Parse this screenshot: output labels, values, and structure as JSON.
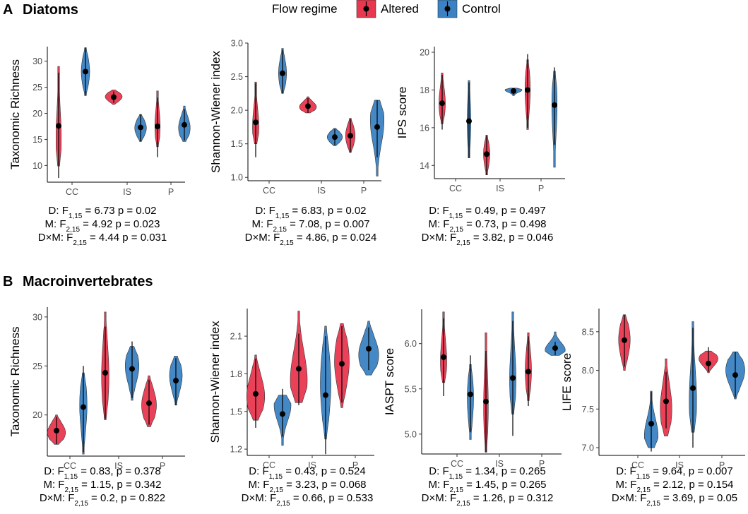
{
  "colors": {
    "altered": "#e8384f",
    "control": "#3a82c3"
  },
  "legend": {
    "title": "Flow regime",
    "items": [
      {
        "label": "Altered",
        "color_key": "altered"
      },
      {
        "label": "Control",
        "color_key": "control"
      }
    ]
  },
  "sections": [
    {
      "letter": "A",
      "title": "Diatoms"
    },
    {
      "letter": "B",
      "title": "Macroinvertebrates"
    }
  ],
  "chart_data": [
    {
      "id": "diatoms-richness",
      "type": "violin",
      "section": "A",
      "ylabel": "Taxonomic Richness",
      "ylim": [
        6.8,
        32.8
      ],
      "yticks": [
        10,
        15,
        20,
        25,
        30
      ],
      "categories": [
        "CC",
        "IS",
        "P"
      ],
      "series": [
        {
          "name": "Altered",
          "groups": [
            {
              "category": "CC",
              "mean": 17.6,
              "lo": 7.6,
              "hi": 27.8,
              "vmin": 9.9,
              "vmax": 29.0,
              "peak": 15,
              "width": 0.25
            },
            {
              "category": "IS",
              "mean": 23.1,
              "lo": 22.0,
              "hi": 24.2,
              "vmin": 21.7,
              "vmax": 24.5,
              "peak": 23.2,
              "width": 0.8
            },
            {
              "category": "P",
              "mean": 17.5,
              "lo": 11.6,
              "hi": 23.0,
              "vmin": 13.6,
              "vmax": 24.3,
              "peak": 17.5,
              "width": 0.25
            }
          ]
        },
        {
          "name": "Control",
          "groups": [
            {
              "category": "CC",
              "mean": 28.0,
              "lo": 23.5,
              "hi": 32.6,
              "vmin": 23.4,
              "vmax": 32.6,
              "peak": 28.0,
              "width": 0.4
            },
            {
              "category": "IS",
              "mean": 17.3,
              "lo": 14.6,
              "hi": 19.8,
              "vmin": 14.6,
              "vmax": 19.8,
              "peak": 17.2,
              "width": 0.55
            },
            {
              "category": "P",
              "mean": 17.8,
              "lo": 14.8,
              "hi": 20.8,
              "vmin": 14.6,
              "vmax": 21.4,
              "peak": 17.2,
              "width": 0.55
            }
          ]
        }
      ],
      "stats": {
        "d_pre": "D: F",
        "d_sub": "1,15",
        "d_post": " = 6.73 p = 0.02",
        "m_pre": "M: F",
        "m_sub": "2,15",
        "m_post": " = 4.92 p = 0.023",
        "dm_pre": "D×M: F",
        "dm_sub": "2,15",
        "dm_post": " = 4.44 p = 0.031"
      }
    },
    {
      "id": "diatoms-shannon",
      "type": "violin",
      "section": "A",
      "ylabel": "Shannon-Wiener index",
      "ylim": [
        0.95,
        3.0
      ],
      "yticks": [
        1.0,
        1.5,
        2.0,
        2.5,
        3.0
      ],
      "categories": [
        "CC",
        "IS",
        "P"
      ],
      "series": [
        {
          "name": "Altered",
          "groups": [
            {
              "category": "CC",
              "mean": 1.82,
              "lo": 1.3,
              "hi": 2.4,
              "vmin": 1.5,
              "vmax": 2.42,
              "peak": 1.75,
              "width": 0.3
            },
            {
              "category": "IS",
              "mean": 2.06,
              "lo": 1.96,
              "hi": 2.18,
              "vmin": 1.96,
              "vmax": 2.2,
              "peak": 2.05,
              "width": 0.8
            },
            {
              "category": "P",
              "mean": 1.62,
              "lo": 1.37,
              "hi": 1.87,
              "vmin": 1.37,
              "vmax": 1.88,
              "peak": 1.62,
              "width": 0.45
            }
          ]
        },
        {
          "name": "Control",
          "groups": [
            {
              "category": "CC",
              "mean": 2.55,
              "lo": 2.25,
              "hi": 2.9,
              "vmin": 2.25,
              "vmax": 2.92,
              "peak": 2.55,
              "width": 0.38
            },
            {
              "category": "IS",
              "mean": 1.6,
              "lo": 1.48,
              "hi": 1.72,
              "vmin": 1.47,
              "vmax": 1.73,
              "peak": 1.6,
              "width": 0.72
            },
            {
              "category": "P",
              "mean": 1.75,
              "lo": 1.3,
              "hi": 2.15,
              "vmin": 1.02,
              "vmax": 2.15,
              "peak": 1.85,
              "width": 0.65
            }
          ]
        }
      ],
      "stats": {
        "d_pre": "D: F",
        "d_sub": "1,15",
        "d_post": " = 6.83, p = 0.02",
        "m_pre": "M: F",
        "m_sub": "2,15",
        "m_post": " = 7.08, p = 0.007",
        "dm_pre": "D×M: F",
        "dm_sub": "2,15",
        "dm_post": " = 4.86, p = 0.024"
      }
    },
    {
      "id": "diatoms-ips",
      "type": "violin",
      "section": "A",
      "ylabel": "IPS score",
      "ylim": [
        13.3,
        20.3
      ],
      "yticks": [
        14,
        16,
        18,
        20
      ],
      "categories": [
        "CC",
        "IS",
        "P"
      ],
      "series": [
        {
          "name": "Altered",
          "groups": [
            {
              "category": "CC",
              "mean": 17.3,
              "lo": 15.9,
              "hi": 18.8,
              "vmin": 16.2,
              "vmax": 18.9,
              "peak": 17.3,
              "width": 0.3
            },
            {
              "category": "IS",
              "mean": 14.6,
              "lo": 13.5,
              "hi": 15.6,
              "vmin": 13.5,
              "vmax": 15.6,
              "peak": 14.6,
              "width": 0.3
            },
            {
              "category": "P",
              "mean": 18.0,
              "lo": 16.0,
              "hi": 19.9,
              "vmin": 15.9,
              "vmax": 19.6,
              "peak": 18.0,
              "width": 0.25
            }
          ]
        },
        {
          "name": "Control",
          "groups": [
            {
              "category": "CC",
              "mean": 16.35,
              "lo": 14.4,
              "hi": 18.4,
              "vmin": 14.4,
              "vmax": 18.5,
              "peak": 16.35,
              "width": 0.18
            },
            {
              "category": "IS",
              "mean": 17.95,
              "lo": 17.75,
              "hi": 18.1,
              "vmin": 17.7,
              "vmax": 18.1,
              "peak": 18.0,
              "width": 0.8
            },
            {
              "category": "P",
              "mean": 17.2,
              "lo": 15.1,
              "hi": 19.2,
              "vmin": 13.9,
              "vmax": 19.0,
              "peak": 17.2,
              "width": 0.25
            }
          ]
        }
      ],
      "stats": {
        "d_pre": "D: F",
        "d_sub": "1,15",
        "d_post": " = 0.49, p = 0.497",
        "m_pre": "M: F",
        "m_sub": "2,15",
        "m_post": " = 0.73, p = 0.498",
        "dm_pre": "D×M: F",
        "dm_sub": "2,15",
        "dm_post": " = 3.82, p = 0.046"
      }
    },
    {
      "id": "macro-richness",
      "type": "violin",
      "section": "B",
      "ylabel": "Taxonomic Richness",
      "ylim": [
        15.8,
        31.0
      ],
      "yticks": [
        20,
        25,
        30
      ],
      "categories": [
        "CC",
        "IS",
        "P"
      ],
      "series": [
        {
          "name": "Altered",
          "groups": [
            {
              "category": "CC",
              "mean": 18.4,
              "lo": 17.0,
              "hi": 19.8,
              "vmin": 17.0,
              "vmax": 20.0,
              "peak": 18.2,
              "width": 0.85
            },
            {
              "category": "IS",
              "mean": 24.3,
              "lo": 19.6,
              "hi": 29.0,
              "vmin": 19.5,
              "vmax": 30.5,
              "peak": 24.0,
              "width": 0.35
            },
            {
              "category": "P",
              "mean": 21.2,
              "lo": 19.0,
              "hi": 23.6,
              "vmin": 18.8,
              "vmax": 24.0,
              "peak": 21.0,
              "width": 0.7
            }
          ]
        },
        {
          "name": "Control",
          "groups": [
            {
              "category": "CC",
              "mean": 20.8,
              "lo": 16.2,
              "hi": 25.0,
              "vmin": 16.0,
              "vmax": 24.3,
              "peak": 21.0,
              "width": 0.35
            },
            {
              "category": "IS",
              "mean": 24.7,
              "lo": 21.7,
              "hi": 27.5,
              "vmin": 21.5,
              "vmax": 27.0,
              "peak": 25.0,
              "width": 0.65
            },
            {
              "category": "P",
              "mean": 23.5,
              "lo": 21.0,
              "hi": 25.8,
              "vmin": 21.0,
              "vmax": 26.0,
              "peak": 24.0,
              "width": 0.6
            }
          ]
        }
      ],
      "stats": {
        "d_pre": "D: F",
        "d_sub": "1,15",
        "d_post": " = 0.83, p = 0.378",
        "m_pre": "M: F",
        "m_sub": "2,15",
        "m_post": " = 1.15, p = 0.342",
        "dm_pre": "D×M: F",
        "dm_sub": "2,15",
        "dm_post": " = 0.2, p = 0.822"
      }
    },
    {
      "id": "macro-shannon",
      "type": "violin",
      "section": "B",
      "ylabel": "Shannon-Wiener index",
      "ylim": [
        1.15,
        2.32
      ],
      "yticks": [
        1.2,
        1.5,
        1.8,
        2.1
      ],
      "categories": [
        "CC",
        "IS",
        "P"
      ],
      "series": [
        {
          "name": "Altered",
          "groups": [
            {
              "category": "CC",
              "mean": 1.64,
              "lo": 1.37,
              "hi": 1.92,
              "vmin": 1.43,
              "vmax": 1.95,
              "peak": 1.62,
              "width": 0.85
            },
            {
              "category": "IS",
              "mean": 1.84,
              "lo": 1.55,
              "hi": 2.12,
              "vmin": 1.57,
              "vmax": 2.3,
              "peak": 1.75,
              "width": 0.8
            },
            {
              "category": "P",
              "mean": 1.88,
              "lo": 1.57,
              "hi": 2.18,
              "vmin": 1.53,
              "vmax": 2.2,
              "peak": 1.9,
              "width": 0.7
            }
          ]
        },
        {
          "name": "Control",
          "groups": [
            {
              "category": "CC",
              "mean": 1.48,
              "lo": 1.3,
              "hi": 1.68,
              "vmin": 1.23,
              "vmax": 1.63,
              "peak": 1.55,
              "width": 0.8
            },
            {
              "category": "IS",
              "mean": 1.63,
              "lo": 1.16,
              "hi": 2.1,
              "vmin": 1.28,
              "vmax": 2.18,
              "peak": 1.72,
              "width": 0.5
            },
            {
              "category": "P",
              "mean": 2.0,
              "lo": 1.83,
              "hi": 2.17,
              "vmin": 1.79,
              "vmax": 2.22,
              "peak": 1.95,
              "width": 0.95
            }
          ]
        }
      ],
      "stats": {
        "d_pre": "D: F",
        "d_sub": "1,15",
        "d_post": " = 0.43, p = 0.524",
        "m_pre": "M: F",
        "m_sub": "2,15",
        "m_post": " = 3.23, p = 0.068",
        "dm_pre": "D×M: F",
        "dm_sub": "2,15",
        "dm_post": " = 0.66, p = 0.533"
      }
    },
    {
      "id": "macro-iaspt",
      "type": "violin",
      "section": "B",
      "ylabel": "IASPT score",
      "ylim": [
        4.78,
        6.38
      ],
      "yticks": [
        5.0,
        5.5,
        6.0
      ],
      "categories": [
        "CC",
        "IS",
        "P"
      ],
      "series": [
        {
          "name": "Altered",
          "groups": [
            {
              "category": "CC",
              "mean": 5.85,
              "lo": 5.42,
              "hi": 6.28,
              "vmin": 5.57,
              "vmax": 6.35,
              "peak": 5.8,
              "width": 0.3
            },
            {
              "category": "IS",
              "mean": 5.36,
              "lo": 4.8,
              "hi": 5.92,
              "vmin": 4.8,
              "vmax": 6.12,
              "peak": 5.3,
              "width": 0.22
            },
            {
              "category": "P",
              "mean": 5.69,
              "lo": 5.31,
              "hi": 6.08,
              "vmin": 5.37,
              "vmax": 6.12,
              "peak": 5.7,
              "width": 0.3
            }
          ]
        },
        {
          "name": "Control",
          "groups": [
            {
              "category": "CC",
              "mean": 5.44,
              "lo": 5.02,
              "hi": 5.87,
              "vmin": 4.94,
              "vmax": 5.77,
              "peak": 5.4,
              "width": 0.3
            },
            {
              "category": "IS",
              "mean": 5.62,
              "lo": 4.98,
              "hi": 6.25,
              "vmin": 5.22,
              "vmax": 6.35,
              "peak": 5.6,
              "width": 0.3
            },
            {
              "category": "P",
              "mean": 5.95,
              "lo": 5.87,
              "hi": 6.02,
              "vmin": 5.87,
              "vmax": 6.13,
              "peak": 5.93,
              "width": 0.95
            }
          ]
        }
      ],
      "stats": {
        "d_pre": "D: F",
        "d_sub": "1,15",
        "d_post": " = 1.34, p = 0.265",
        "m_pre": "M: F",
        "m_sub": "2,15",
        "m_post": " = 1.45, p = 0.265",
        "dm_pre": "D×M: F",
        "dm_sub": "2,15",
        "dm_post": " = 1.26, p = 0.312"
      }
    },
    {
      "id": "macro-life",
      "type": "violin",
      "section": "B",
      "ylabel": "LIFE score",
      "ylim": [
        6.9,
        8.8
      ],
      "yticks": [
        7.0,
        7.5,
        8.0,
        8.5
      ],
      "categories": [
        "CC",
        "IS",
        "P"
      ],
      "series": [
        {
          "name": "Altered",
          "groups": [
            {
              "category": "CC",
              "mean": 8.39,
              "lo": 8.05,
              "hi": 8.72,
              "vmin": 8.0,
              "vmax": 8.72,
              "peak": 8.4,
              "width": 0.55
            },
            {
              "category": "IS",
              "mean": 7.6,
              "lo": 7.25,
              "hi": 7.98,
              "vmin": 7.15,
              "vmax": 8.15,
              "peak": 7.5,
              "width": 0.55
            },
            {
              "category": "P",
              "mean": 8.09,
              "lo": 7.98,
              "hi": 8.3,
              "vmin": 7.97,
              "vmax": 8.25,
              "peak": 8.15,
              "width": 0.9
            }
          ]
        },
        {
          "name": "Control",
          "groups": [
            {
              "category": "CC",
              "mean": 7.31,
              "lo": 6.95,
              "hi": 7.72,
              "vmin": 7.0,
              "vmax": 7.73,
              "peak": 7.15,
              "width": 0.65
            },
            {
              "category": "IS",
              "mean": 7.77,
              "lo": 7.0,
              "hi": 8.55,
              "vmin": 7.2,
              "vmax": 8.63,
              "peak": 7.6,
              "width": 0.35
            },
            {
              "category": "P",
              "mean": 7.94,
              "lo": 7.65,
              "hi": 8.24,
              "vmin": 7.63,
              "vmax": 8.24,
              "peak": 8.0,
              "width": 0.9
            }
          ]
        }
      ],
      "stats": {
        "d_pre": "D: F",
        "d_sub": "1,15",
        "d_post": " = 9.64, p = 0.007",
        "m_pre": "M: F",
        "m_sub": "2,15",
        "m_post": " = 2.12, p = 0.154",
        "dm_pre": "D×M: F",
        "dm_sub": "2,15",
        "dm_post": " = 3.69, p = 0.05"
      }
    }
  ]
}
